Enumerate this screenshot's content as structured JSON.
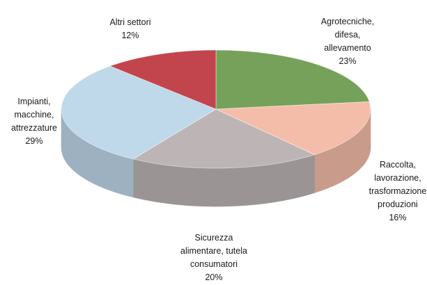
{
  "chart_data": {
    "type": "pie",
    "style": "3d",
    "slices": [
      {
        "label_lines": [
          "Agrotecniche,",
          "difesa,",
          "allevamento"
        ],
        "percent_label": "23%",
        "value": 23,
        "color": "#76a15a"
      },
      {
        "label_lines": [
          "Raccolta,",
          "lavorazione,",
          "trasformazione",
          "produzioni"
        ],
        "percent_label": "16%",
        "value": 16,
        "color": "#f4bda9"
      },
      {
        "label_lines": [
          "Sicurezza",
          "alimentare, tutela",
          "consumatori"
        ],
        "percent_label": "20%",
        "value": 20,
        "color": "#bdb5b5"
      },
      {
        "label_lines": [
          "Impianti,",
          "macchine,",
          "attrezzature"
        ],
        "percent_label": "29%",
        "value": 29,
        "color": "#bfd8ea"
      },
      {
        "label_lines": [
          "Altri settori"
        ],
        "percent_label": "12%",
        "value": 12,
        "color": "#c2454e"
      }
    ]
  }
}
